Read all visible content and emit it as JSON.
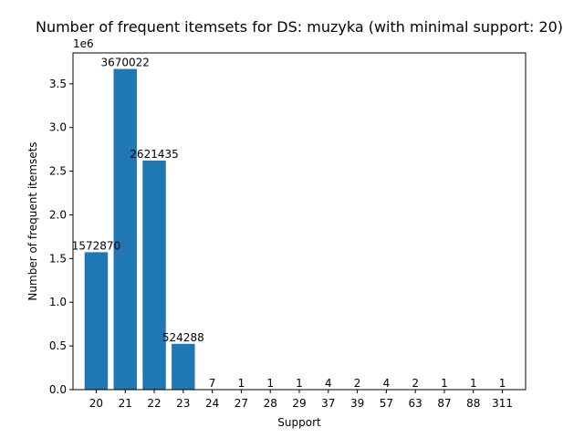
{
  "chart_data": {
    "type": "bar",
    "title": "Number of frequent itemsets for DS: muzyka (with minimal support: 20)",
    "xlabel": "Support",
    "ylabel": "Number of frequent itemsets",
    "y_offset_label": "1e6",
    "categories": [
      "20",
      "21",
      "22",
      "23",
      "24",
      "27",
      "28",
      "29",
      "37",
      "39",
      "57",
      "63",
      "87",
      "88",
      "311"
    ],
    "values": [
      1572870,
      3670022,
      2621435,
      524288,
      7,
      1,
      1,
      1,
      4,
      2,
      4,
      2,
      1,
      1,
      1
    ],
    "data_labels": [
      "1572870",
      "3670022",
      "2621435",
      "524288",
      "7",
      "1",
      "1",
      "1",
      "4",
      "2",
      "4",
      "2",
      "1",
      "1",
      "1"
    ],
    "ylim": [
      0,
      3853523
    ],
    "y_ticks": [
      0,
      500000,
      1000000,
      1500000,
      2000000,
      2500000,
      3000000,
      3500000
    ],
    "y_tick_labels": [
      "0.0",
      "0.5",
      "1.0",
      "1.5",
      "2.0",
      "2.5",
      "3.0",
      "3.5"
    ],
    "bar_color": "#1f77b4",
    "grid": false,
    "legend": "none"
  }
}
